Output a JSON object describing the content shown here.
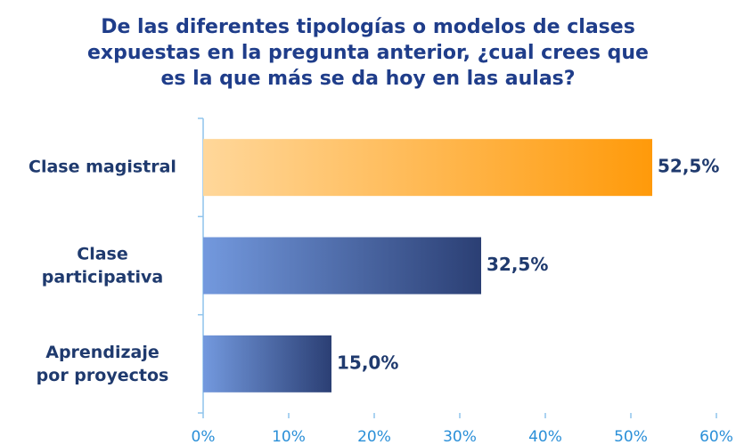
{
  "chart_data": {
    "type": "barh",
    "title": "De las diferentes tipologías o modelos de clases expuestas en la pregunta anterior, ¿cual crees que es la que más se da hoy en las aulas?",
    "categories": [
      "Clase magistral",
      "Clase participativa",
      "Aprendizaje por proyectos"
    ],
    "values": [
      52.5,
      32.5,
      15.0
    ],
    "value_labels": [
      "52,5%",
      "32,5%",
      "15,0%"
    ],
    "colors": [
      [
        "#ffd79a",
        "#ff9a0a"
      ],
      [
        "#7399de",
        "#2b3f74"
      ],
      [
        "#7399de",
        "#2b3f74"
      ]
    ],
    "xlim": [
      0,
      60
    ],
    "xticks": [
      {
        "value": 0,
        "label": "0%"
      },
      {
        "value": 10,
        "label": "10%"
      },
      {
        "value": 20,
        "label": "20%"
      },
      {
        "value": 30,
        "label": "30%"
      },
      {
        "value": 40,
        "label": "40%"
      },
      {
        "value": 50,
        "label": "50%"
      },
      {
        "value": 60,
        "label": "60%"
      }
    ]
  }
}
